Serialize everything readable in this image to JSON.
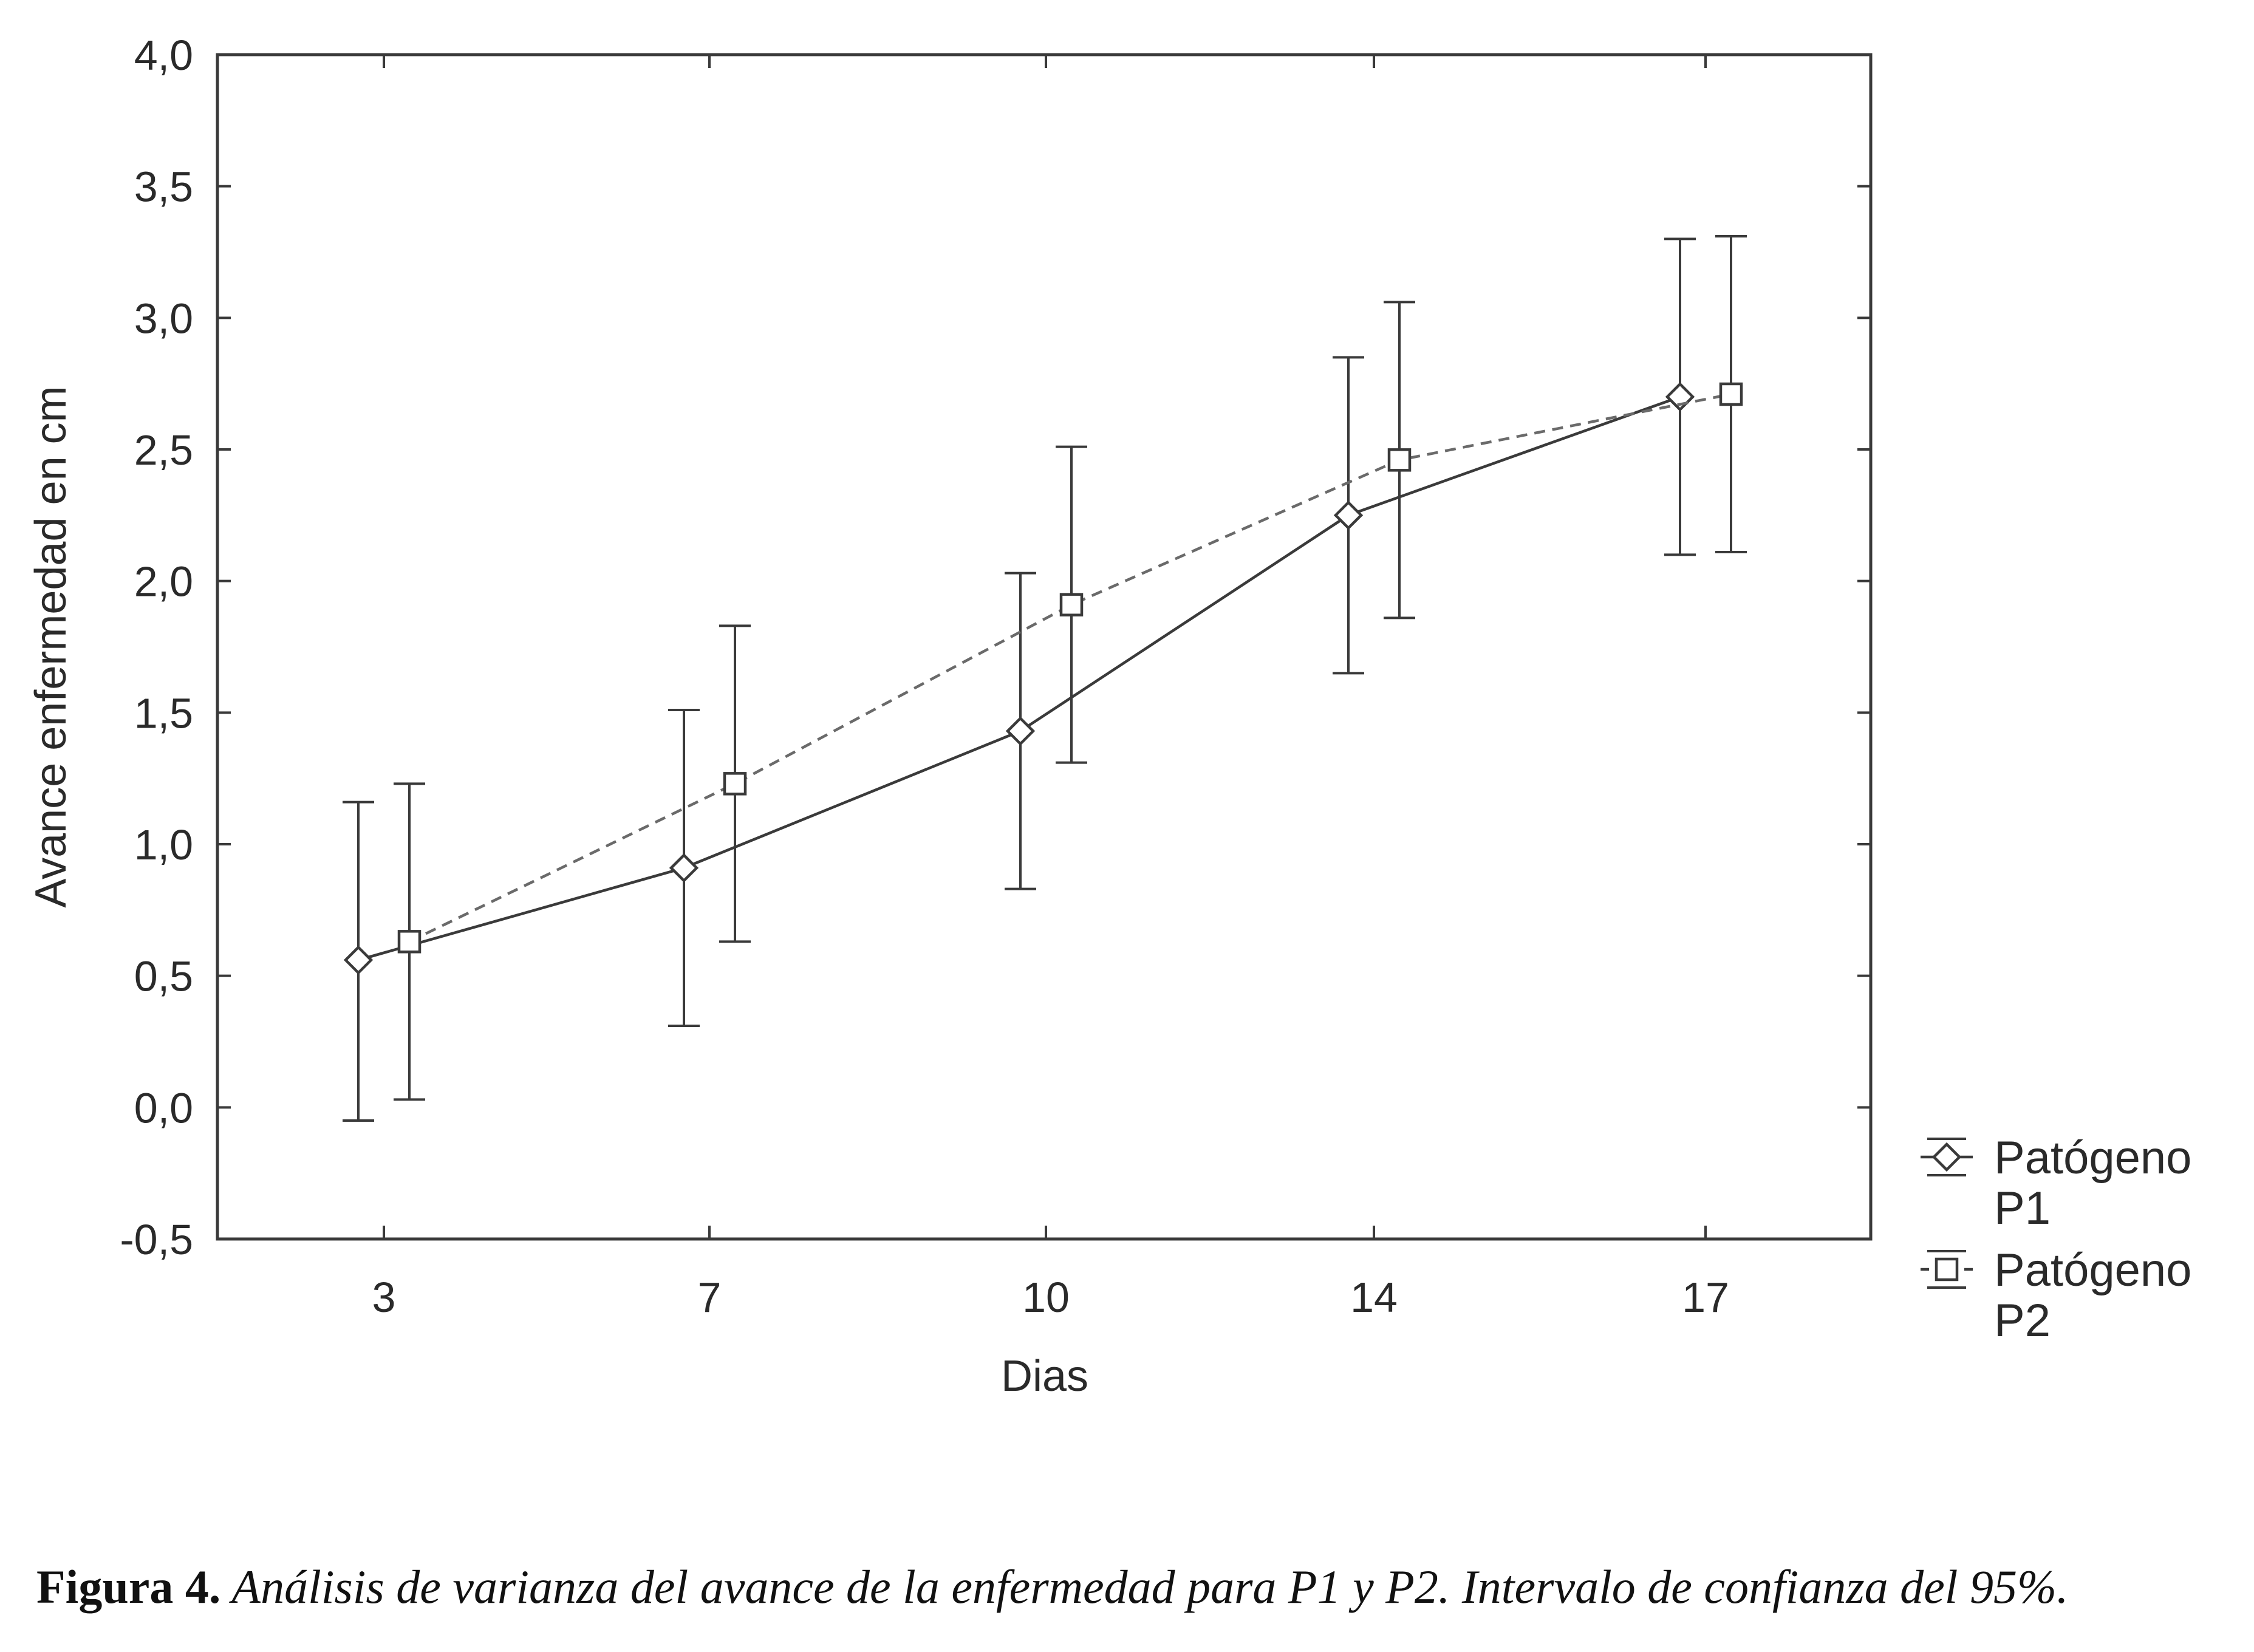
{
  "chart_data": {
    "type": "line",
    "xlabel": "Dias",
    "ylabel": "Avance enfermedad en cm",
    "categories": [
      "3",
      "7",
      "10",
      "14",
      "17"
    ],
    "yticks": [
      "4,0",
      "3,5",
      "3,0",
      "2,5",
      "2,0",
      "1,5",
      "1,0",
      "0,5",
      "0,0",
      "-0,5"
    ],
    "ylim": [
      -0.5,
      4.0
    ],
    "grid": false,
    "legend_position": "right-bottom",
    "error_bars": "95% confidence interval",
    "series": [
      {
        "name": "Patógeno P1",
        "name_line1": "Patógeno",
        "name_line2": "P1",
        "marker": "diamond",
        "line_style": "solid",
        "values": [
          0.56,
          0.91,
          1.43,
          2.25,
          2.7
        ],
        "lower": [
          -0.05,
          0.31,
          0.83,
          1.65,
          2.1
        ],
        "upper": [
          1.16,
          1.51,
          2.03,
          2.85,
          3.3
        ]
      },
      {
        "name": "Patógeno P2",
        "name_line1": "Patógeno",
        "name_line2": "P2",
        "marker": "square",
        "line_style": "dashed",
        "values": [
          0.63,
          1.23,
          1.91,
          2.46,
          2.71
        ],
        "lower": [
          0.03,
          0.63,
          1.31,
          1.86,
          2.11
        ],
        "upper": [
          1.23,
          1.83,
          2.51,
          3.06,
          3.31
        ]
      }
    ]
  },
  "caption": {
    "label": "Figura 4.",
    "text": " Análisis de varianza del avance de la enfermedad para P1 y P2. Intervalo de confianza del 95%."
  }
}
